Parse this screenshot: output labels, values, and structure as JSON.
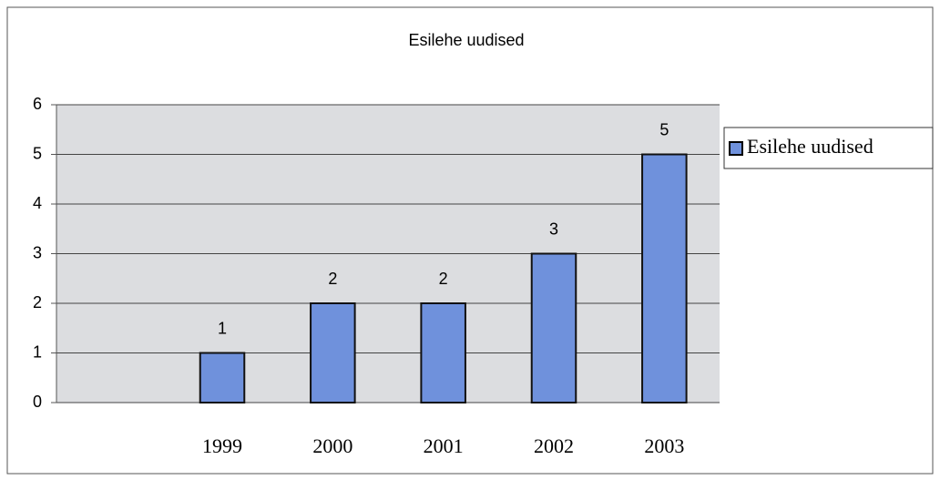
{
  "chart_data": {
    "type": "bar",
    "title": "Esilehe uudised",
    "categories": [
      null,
      "1999",
      "2000",
      "2001",
      "2002",
      "2003"
    ],
    "series": [
      {
        "name": "Esilehe uudised",
        "color": "#6f91dc",
        "values": [
          null,
          1,
          2,
          2,
          3,
          5
        ]
      }
    ],
    "ylim": [
      0,
      6
    ],
    "yticks": [
      0,
      1,
      2,
      3,
      4,
      5,
      6
    ],
    "grid": true,
    "legend": "right"
  }
}
